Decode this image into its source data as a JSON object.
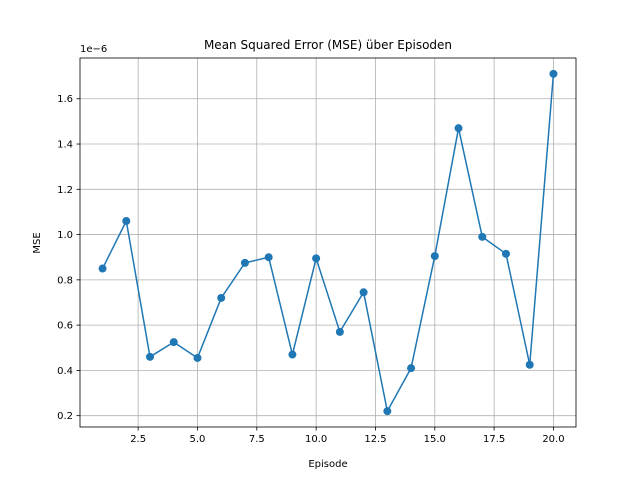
{
  "chart_data": {
    "type": "line",
    "title": "Mean Squared Error (MSE) über Episoden",
    "xlabel": "Episode",
    "ylabel": "MSE",
    "y_offset_label": "1e−6",
    "y_scale_factor": 1e-06,
    "grid": true,
    "marker": "circle",
    "color": "#1f77b4",
    "xlim": [
      0.05,
      20.95
    ],
    "ylim": [
      1.5e-07,
      1.78e-06
    ],
    "x_ticks": [
      2.5,
      5.0,
      7.5,
      10.0,
      12.5,
      15.0,
      17.5,
      20.0
    ],
    "x_tick_labels": [
      "2.5",
      "5.0",
      "7.5",
      "10.0",
      "12.5",
      "15.0",
      "17.5",
      "20.0"
    ],
    "y_ticks": [
      2e-07,
      4e-07,
      6e-07,
      8e-07,
      1e-06,
      1.2e-06,
      1.4e-06,
      1.6e-06
    ],
    "y_tick_labels": [
      "0.2",
      "0.4",
      "0.6",
      "0.8",
      "1.0",
      "1.2",
      "1.4",
      "1.6"
    ],
    "series": [
      {
        "x": [
          1,
          2,
          3,
          4,
          5,
          6,
          7,
          8,
          9,
          10,
          11,
          12,
          13,
          14,
          15,
          16,
          17,
          18,
          19,
          20
        ],
        "y": [
          8.5e-07,
          1.06e-06,
          4.6e-07,
          5.25e-07,
          4.55e-07,
          7.2e-07,
          8.75e-07,
          9e-07,
          4.7e-07,
          8.95e-07,
          5.7e-07,
          7.45e-07,
          2.2e-07,
          4.1e-07,
          9.05e-07,
          1.47e-06,
          9.9e-07,
          9.15e-07,
          4.25e-07,
          1.71e-06
        ]
      }
    ]
  }
}
